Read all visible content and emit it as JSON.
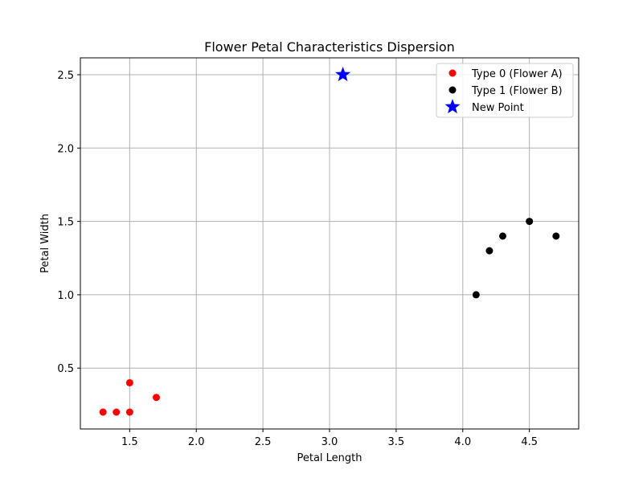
{
  "chart_data": {
    "type": "scatter",
    "title": "Flower Petal Characteristics Dispersion",
    "xlabel": "Petal Length",
    "ylabel": "Petal Width",
    "xlim": [
      1.13,
      4.87
    ],
    "ylim": [
      0.085,
      2.615
    ],
    "xticks": [
      1.5,
      2.0,
      2.5,
      3.0,
      3.5,
      4.0,
      4.5
    ],
    "xtick_labels": [
      "1.5",
      "2.0",
      "2.5",
      "3.0",
      "3.5",
      "4.0",
      "4.5"
    ],
    "yticks": [
      0.5,
      1.0,
      1.5,
      2.0,
      2.5
    ],
    "ytick_labels": [
      "0.5",
      "1.0",
      "1.5",
      "2.0",
      "2.5"
    ],
    "grid": true,
    "legend_position": "top-right",
    "series": [
      {
        "name": "Type 0 (Flower A)",
        "color": "#ff0000",
        "marker": "circle",
        "points": [
          [
            1.3,
            0.2
          ],
          [
            1.4,
            0.2
          ],
          [
            1.5,
            0.2
          ],
          [
            1.5,
            0.4
          ],
          [
            1.7,
            0.3
          ]
        ]
      },
      {
        "name": "Type 1 (Flower B)",
        "color": "#000000",
        "marker": "circle",
        "points": [
          [
            4.1,
            1.0
          ],
          [
            4.2,
            1.3
          ],
          [
            4.3,
            1.4
          ],
          [
            4.5,
            1.5
          ],
          [
            4.7,
            1.4
          ]
        ]
      },
      {
        "name": "New Point",
        "color": "#0000ff",
        "marker": "star",
        "points": [
          [
            3.1,
            2.5
          ]
        ]
      }
    ]
  }
}
